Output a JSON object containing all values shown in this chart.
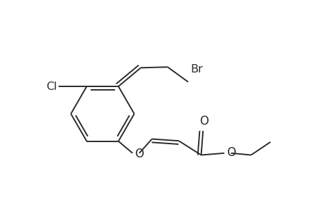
{
  "background": "#ffffff",
  "bond_color": "#2a2a2a",
  "bond_lw": 1.4,
  "figsize": [
    4.6,
    3.0
  ],
  "dpi": 100,
  "xlim": [
    0.5,
    9.0
  ],
  "ylim": [
    1.0,
    6.5
  ]
}
